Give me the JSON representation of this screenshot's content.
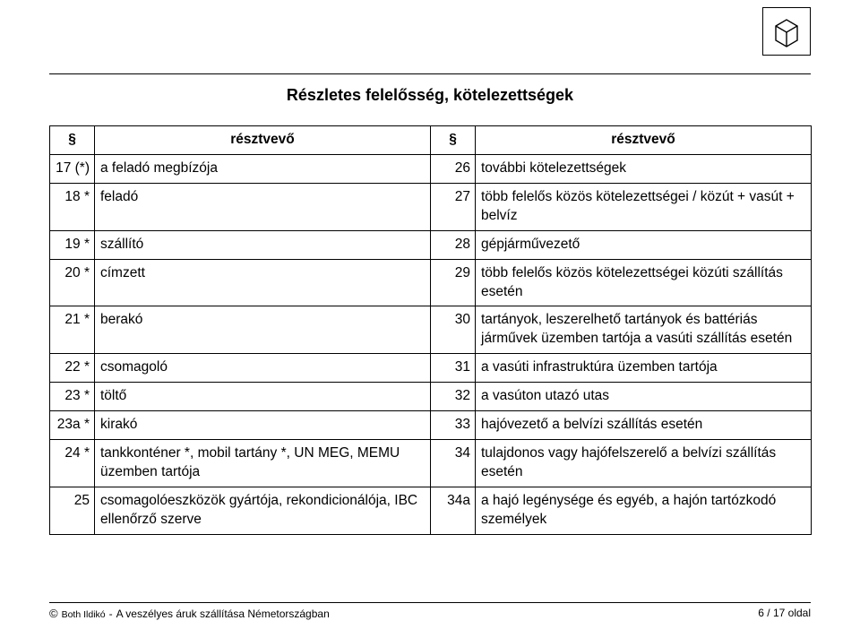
{
  "title": "Részletes felelősség, kötelezettségek",
  "headers": {
    "section": "§",
    "participant": "résztvevő"
  },
  "rows": [
    {
      "l_sec": "17 (*)",
      "l_txt": "a feladó megbízója",
      "r_sec": "26",
      "r_txt": "további kötelezettségek"
    },
    {
      "l_sec": "18 *",
      "l_txt": "feladó",
      "r_sec": "27",
      "r_txt": "több felelős közös kötelezettségei / közút + vasút + belvíz"
    },
    {
      "l_sec": "19 *",
      "l_txt": "szállító",
      "r_sec": "28",
      "r_txt": "gépjárművezető"
    },
    {
      "l_sec": "20 *",
      "l_txt": "címzett",
      "r_sec": "29",
      "r_txt": "több felelős közös kötelezettségei közúti szállítás esetén"
    },
    {
      "l_sec": "21 *",
      "l_txt": "berakó",
      "r_sec": "30",
      "r_txt": "tartányok, leszerelhető tartányok és battériás járművek üzemben tartója a vasúti szállítás esetén"
    },
    {
      "l_sec": "22 *",
      "l_txt": "csomagoló",
      "r_sec": "31",
      "r_txt": "a vasúti infrastruktúra üzemben tartója"
    },
    {
      "l_sec": "23 *",
      "l_txt": "töltő",
      "r_sec": "32",
      "r_txt": "a vasúton utazó utas"
    },
    {
      "l_sec": "23a *",
      "l_txt": "kirakó",
      "r_sec": "33",
      "r_txt": "hajóvezető a belvízi szállítás esetén"
    },
    {
      "l_sec": "24 *",
      "l_txt": "tankkonténer *, mobil tartány *, UN MEG, MEMU üzemben tartója",
      "r_sec": "34",
      "r_txt": "tulajdonos vagy hajófelszerelő a belvízi szállítás esetén"
    },
    {
      "l_sec": "25",
      "l_txt": "csomagolóeszközök gyártója, rekondicionálója, IBC ellenőrző szerve",
      "r_sec": "34a",
      "r_txt": "a hajó legénysége és egyéb, a hajón tartózkodó személyek"
    }
  ],
  "footer": {
    "copyright": "©",
    "author": "Both Ildikó",
    "dash": " - ",
    "doc_title": "A veszélyes áruk szállítása Németországban",
    "page": "6 / 17 oldal"
  },
  "style": {
    "page_bg": "#ffffff",
    "text_color": "#000000",
    "border_color": "#000000",
    "title_fontsize": 18,
    "body_fontsize": 15.5,
    "footer_fontsize": 12
  }
}
